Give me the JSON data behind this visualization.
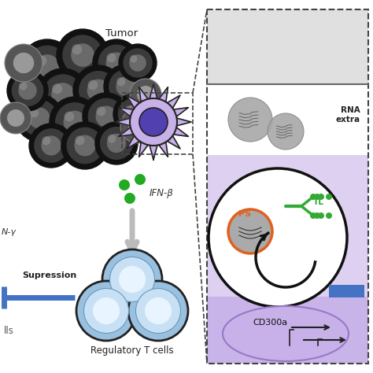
{
  "bg_color": "#ffffff",
  "tumor_label": "Tumor",
  "ifn_label": "IFN-β",
  "ifng_label": "N-γ",
  "suppression_label": "Supression",
  "treg_label": "Regulatory T cells",
  "rna_label": "RNA\nextra",
  "ps_label": "PS",
  "tl_label": "TL",
  "cd300a_label": "CD300a",
  "cells_label": "lls",
  "panel_bg_top": "#e0e0e0",
  "panel_bg_bottom": "#ddd0f0",
  "panel_bg_inner_bottom": "#c8b4e8",
  "blue_bar_color": "#4472c4",
  "green_dot_color": "#22aa22",
  "orange_ps_color": "#e06020",
  "green_tl_color": "#33aa33"
}
